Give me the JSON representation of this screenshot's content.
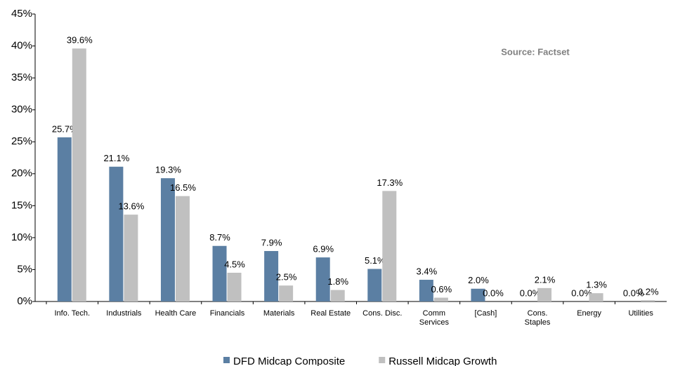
{
  "chart_data": {
    "type": "bar",
    "annotation": "Source: Factset",
    "categories": [
      "Info. Tech.",
      "Industrials",
      "Health Care",
      "Financials",
      "Materials",
      "Real Estate",
      "Cons. Disc.",
      "Comm Services",
      "[Cash]",
      "Cons. Staples",
      "Energy",
      "Utilities"
    ],
    "series": [
      {
        "name": "DFD Midcap Composite",
        "color": "#5b7fa3",
        "values": [
          25.7,
          21.1,
          19.3,
          8.7,
          7.9,
          6.9,
          5.1,
          3.4,
          2.0,
          0.0,
          0.0,
          0.0
        ],
        "value_labels": [
          "25.7%",
          "21.1%",
          "19.3%",
          "8.7%",
          "7.9%",
          "6.9%",
          "5.1%",
          "3.4%",
          "2.0%",
          "0.0%",
          "0.0%",
          "0.0%"
        ]
      },
      {
        "name": "Russell Midcap Growth",
        "color": "#c0c0c0",
        "values": [
          39.6,
          13.6,
          16.5,
          4.5,
          2.5,
          1.8,
          17.3,
          0.6,
          0.0,
          2.1,
          1.3,
          0.2
        ],
        "value_labels": [
          "39.6%",
          "13.6%",
          "16.5%",
          "4.5%",
          "2.5%",
          "1.8%",
          "17.3%",
          "0.6%",
          "0.0%",
          "2.1%",
          "1.3%",
          "0.2%"
        ]
      }
    ],
    "ylim": [
      0,
      45
    ],
    "yticks": [
      {
        "value": 0,
        "label": "0%"
      },
      {
        "value": 5,
        "label": "5%"
      },
      {
        "value": 10,
        "label": "10%"
      },
      {
        "value": 15,
        "label": "15%"
      },
      {
        "value": 20,
        "label": "20%"
      },
      {
        "value": 25,
        "label": "25%"
      },
      {
        "value": 30,
        "label": "30%"
      },
      {
        "value": 35,
        "label": "35%"
      },
      {
        "value": 40,
        "label": "40%"
      },
      {
        "value": 45,
        "label": "45%"
      }
    ],
    "grid": false,
    "legend": "bottom"
  }
}
